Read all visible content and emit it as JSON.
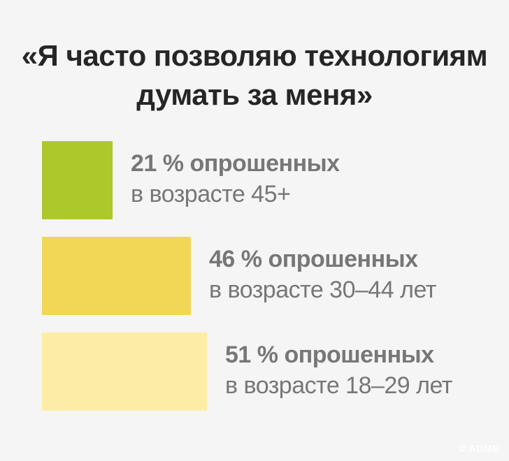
{
  "title_lines": [
    "«Я часто позволяю технологиям",
    "думать за меня»"
  ],
  "chart_data": {
    "type": "bar",
    "orientation": "horizontal",
    "categories": [
      "в возрасте 45+",
      "в возрасте 30–44 лет",
      "в возрасте 18–29 лет"
    ],
    "values": [
      21,
      46,
      51
    ],
    "value_labels": [
      "21 % опрошенных",
      "46 % опрошенных",
      "51 % опрошенных"
    ],
    "colors": [
      "#adc82a",
      "#f2d655",
      "#fdeca6"
    ],
    "title": "«Я часто позволяю технологиям думать за меня»",
    "xlabel": "",
    "ylabel": "",
    "grid": false
  },
  "watermark": "© ADME"
}
